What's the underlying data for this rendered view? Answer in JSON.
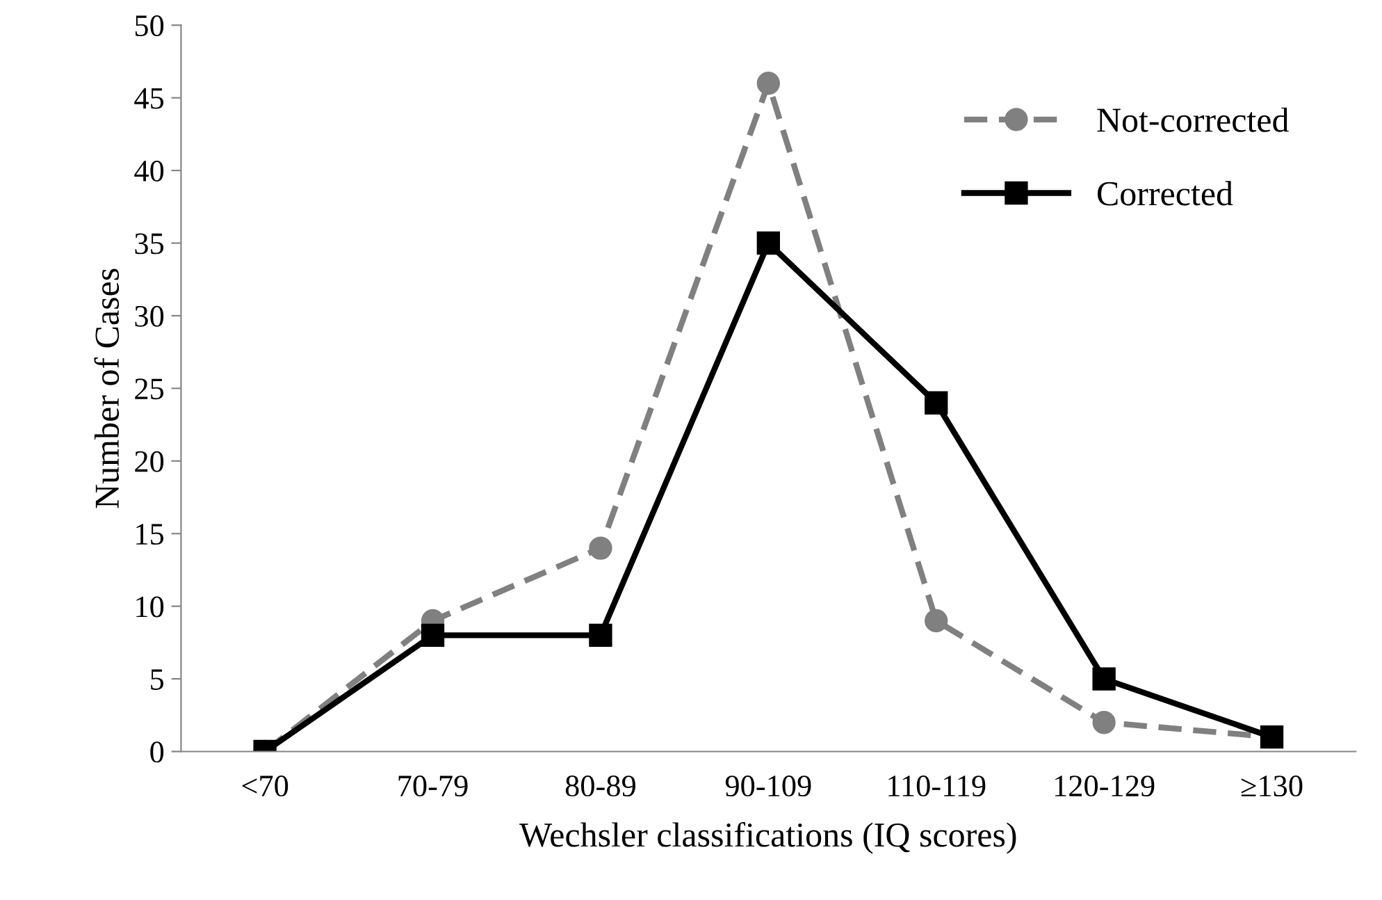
{
  "chart_data": {
    "type": "line",
    "xlabel": "Wechsler classifications (IQ scores)",
    "ylabel": "Number of Cases",
    "categories": [
      "<70",
      "70-79",
      "80-89",
      "90-109",
      "110-119",
      "120-129",
      "≥130"
    ],
    "series": [
      {
        "name": "Not-corrected",
        "color": "#808080",
        "values": [
          0,
          9,
          14,
          46,
          9,
          2,
          1
        ],
        "marker": "circle",
        "line_style": "dashed"
      },
      {
        "name": "Corrected",
        "color": "#000000",
        "values": [
          0,
          8,
          8,
          35,
          24,
          5,
          1
        ],
        "marker": "square",
        "line_style": "solid"
      }
    ],
    "ylim": [
      0,
      50
    ],
    "yticks": [
      0,
      5,
      10,
      15,
      20,
      25,
      30,
      35,
      40,
      45,
      50
    ],
    "grid": false,
    "legend": "top right"
  }
}
